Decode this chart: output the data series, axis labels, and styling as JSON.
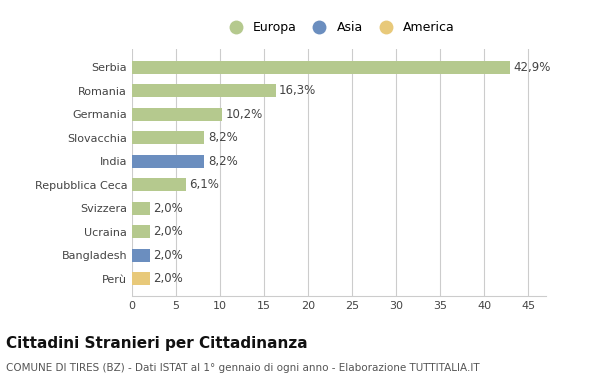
{
  "categories": [
    "Serbia",
    "Romania",
    "Germania",
    "Slovacchia",
    "India",
    "Repubblica Ceca",
    "Svizzera",
    "Ucraina",
    "Bangladesh",
    "Perù"
  ],
  "values": [
    42.9,
    16.3,
    10.2,
    8.2,
    8.2,
    6.1,
    2.0,
    2.0,
    2.0,
    2.0
  ],
  "labels": [
    "42,9%",
    "16,3%",
    "10,2%",
    "8,2%",
    "8,2%",
    "6,1%",
    "2,0%",
    "2,0%",
    "2,0%",
    "2,0%"
  ],
  "colors": [
    "#b5c98e",
    "#b5c98e",
    "#b5c98e",
    "#b5c98e",
    "#6b8ebf",
    "#b5c98e",
    "#b5c98e",
    "#b5c98e",
    "#6b8ebf",
    "#e8c97a"
  ],
  "legend_labels": [
    "Europa",
    "Asia",
    "America"
  ],
  "legend_colors": [
    "#b5c98e",
    "#6b8ebf",
    "#e8c97a"
  ],
  "xlim": [
    0,
    47
  ],
  "xticks": [
    0,
    5,
    10,
    15,
    20,
    25,
    30,
    35,
    40,
    45
  ],
  "title": "Cittadini Stranieri per Cittadinanza",
  "subtitle": "COMUNE DI TIRES (BZ) - Dati ISTAT al 1° gennaio di ogni anno - Elaborazione TUTTITALIA.IT",
  "bg_color": "#ffffff",
  "grid_color": "#cccccc",
  "bar_height": 0.55,
  "label_fontsize": 8.5,
  "tick_fontsize": 8,
  "title_fontsize": 11,
  "subtitle_fontsize": 7.5,
  "legend_fontsize": 9
}
